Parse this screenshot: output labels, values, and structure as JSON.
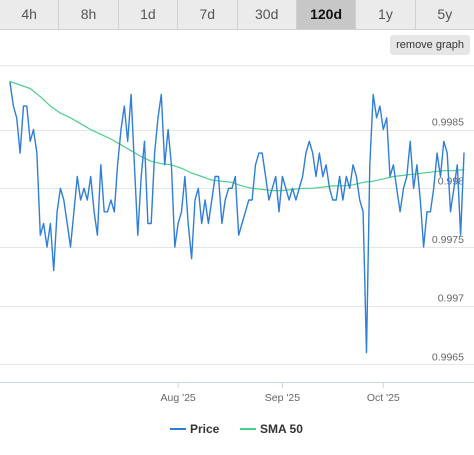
{
  "tabs": [
    {
      "label": "4h",
      "active": false
    },
    {
      "label": "8h",
      "active": false
    },
    {
      "label": "1d",
      "active": false
    },
    {
      "label": "7d",
      "active": false
    },
    {
      "label": "30d",
      "active": false
    },
    {
      "label": "120d",
      "active": true
    },
    {
      "label": "1y",
      "active": false
    },
    {
      "label": "5y",
      "active": false
    }
  ],
  "remove_graph_label": "remove graph",
  "colors": {
    "price": "#2f7ed8",
    "sma": "#4cd08c",
    "grid": "#e6e6e6",
    "axis": "#ccd6eb"
  },
  "chart_data": {
    "type": "line",
    "x_axis": {
      "type": "date",
      "min": "2025-06-12",
      "max": "2025-10-25",
      "tick_labels": [
        {
          "date": "2025-08-01",
          "label": "Aug '25"
        },
        {
          "date": "2025-09-01",
          "label": "Sep '25"
        },
        {
          "date": "2025-10-01",
          "label": "Oct '25"
        }
      ]
    },
    "y_axis": {
      "min": 0.99635,
      "max": 0.99905,
      "ticks": [
        0.9965,
        0.997,
        0.9975,
        0.998,
        0.9985
      ],
      "tick_labels": [
        "0.9965",
        "0.997",
        "0.9975",
        "0.998",
        "0.9985"
      ],
      "position": "right"
    },
    "grid": true,
    "legend": {
      "position": "bottom-center",
      "entries": [
        "Price",
        "SMA 50"
      ]
    },
    "series": [
      {
        "name": "Price",
        "x": [
          "2025-06-12",
          "2025-06-13",
          "2025-06-14",
          "2025-06-15",
          "2025-06-16",
          "2025-06-17",
          "2025-06-18",
          "2025-06-19",
          "2025-06-20",
          "2025-06-21",
          "2025-06-22",
          "2025-06-23",
          "2025-06-24",
          "2025-06-25",
          "2025-06-26",
          "2025-06-27",
          "2025-06-28",
          "2025-06-29",
          "2025-06-30",
          "2025-07-01",
          "2025-07-02",
          "2025-07-03",
          "2025-07-04",
          "2025-07-05",
          "2025-07-06",
          "2025-07-07",
          "2025-07-08",
          "2025-07-09",
          "2025-07-10",
          "2025-07-11",
          "2025-07-12",
          "2025-07-13",
          "2025-07-14",
          "2025-07-15",
          "2025-07-16",
          "2025-07-17",
          "2025-07-18",
          "2025-07-19",
          "2025-07-20",
          "2025-07-21",
          "2025-07-22",
          "2025-07-23",
          "2025-07-24",
          "2025-07-25",
          "2025-07-26",
          "2025-07-27",
          "2025-07-28",
          "2025-07-29",
          "2025-07-30",
          "2025-07-31",
          "2025-08-01",
          "2025-08-02",
          "2025-08-03",
          "2025-08-04",
          "2025-08-05",
          "2025-08-06",
          "2025-08-07",
          "2025-08-08",
          "2025-08-09",
          "2025-08-10",
          "2025-08-11",
          "2025-08-12",
          "2025-08-13",
          "2025-08-14",
          "2025-08-15",
          "2025-08-16",
          "2025-08-17",
          "2025-08-18",
          "2025-08-19",
          "2025-08-20",
          "2025-08-21",
          "2025-08-22",
          "2025-08-23",
          "2025-08-24",
          "2025-08-25",
          "2025-08-26",
          "2025-08-27",
          "2025-08-28",
          "2025-08-29",
          "2025-08-30",
          "2025-08-31",
          "2025-09-01",
          "2025-09-02",
          "2025-09-03",
          "2025-09-04",
          "2025-09-05",
          "2025-09-06",
          "2025-09-07",
          "2025-09-08",
          "2025-09-09",
          "2025-09-10",
          "2025-09-11",
          "2025-09-12",
          "2025-09-13",
          "2025-09-14",
          "2025-09-15",
          "2025-09-16",
          "2025-09-17",
          "2025-09-18",
          "2025-09-19",
          "2025-09-20",
          "2025-09-21",
          "2025-09-22",
          "2025-09-23",
          "2025-09-24",
          "2025-09-25",
          "2025-09-26",
          "2025-09-27",
          "2025-09-28",
          "2025-09-29",
          "2025-09-30",
          "2025-10-01",
          "2025-10-02",
          "2025-10-03",
          "2025-10-04",
          "2025-10-05",
          "2025-10-06",
          "2025-10-07",
          "2025-10-08",
          "2025-10-09",
          "2025-10-10",
          "2025-10-11",
          "2025-10-12",
          "2025-10-13",
          "2025-10-14",
          "2025-10-15",
          "2025-10-16",
          "2025-10-17",
          "2025-10-18",
          "2025-10-19",
          "2025-10-20",
          "2025-10-21",
          "2025-10-22",
          "2025-10-23",
          "2025-10-24",
          "2025-10-25"
        ],
        "y": [
          0.9989,
          0.9987,
          0.9986,
          0.9983,
          0.9987,
          0.9987,
          0.9984,
          0.9985,
          0.9983,
          0.9976,
          0.9977,
          0.9975,
          0.9977,
          0.9973,
          0.9978,
          0.998,
          0.9979,
          0.9977,
          0.9975,
          0.9978,
          0.9981,
          0.9979,
          0.998,
          0.9979,
          0.9981,
          0.9978,
          0.9976,
          0.9982,
          0.9978,
          0.9978,
          0.9979,
          0.9978,
          0.9982,
          0.9985,
          0.9987,
          0.9984,
          0.9988,
          0.9982,
          0.9976,
          0.9981,
          0.9984,
          0.9977,
          0.9977,
          0.9983,
          0.9986,
          0.9988,
          0.9982,
          0.9985,
          0.9982,
          0.9975,
          0.9977,
          0.9978,
          0.9981,
          0.9977,
          0.9974,
          0.9979,
          0.998,
          0.9977,
          0.9979,
          0.9977,
          0.9979,
          0.9981,
          0.9981,
          0.9977,
          0.9979,
          0.998,
          0.998,
          0.9981,
          0.9976,
          0.9977,
          0.9978,
          0.9979,
          0.9979,
          0.9982,
          0.9983,
          0.9983,
          0.9981,
          0.9979,
          0.998,
          0.9981,
          0.9978,
          0.9981,
          0.998,
          0.9979,
          0.998,
          0.9979,
          0.998,
          0.9981,
          0.9983,
          0.9984,
          0.9983,
          0.9981,
          0.9983,
          0.9981,
          0.9982,
          0.998,
          0.9979,
          0.9979,
          0.9981,
          0.9979,
          0.9981,
          0.998,
          0.9982,
          0.9981,
          0.9979,
          0.9978,
          0.9966,
          0.9982,
          0.9988,
          0.9986,
          0.9987,
          0.9985,
          0.9986,
          0.9981,
          0.9982,
          0.998,
          0.9978,
          0.998,
          0.9981,
          0.9984,
          0.998,
          0.9982,
          0.9979,
          0.9975,
          0.9978,
          0.9978,
          0.998,
          0.9983,
          0.9981,
          0.9984,
          0.9983,
          0.9978,
          0.998,
          0.9982,
          0.9976,
          0.9983
        ]
      },
      {
        "name": "SMA 50",
        "x": [
          "2025-06-12",
          "2025-06-15",
          "2025-06-18",
          "2025-06-21",
          "2025-06-24",
          "2025-06-27",
          "2025-06-30",
          "2025-07-03",
          "2025-07-06",
          "2025-07-09",
          "2025-07-12",
          "2025-07-15",
          "2025-07-18",
          "2025-07-21",
          "2025-07-24",
          "2025-07-27",
          "2025-07-30",
          "2025-08-02",
          "2025-08-05",
          "2025-08-08",
          "2025-08-11",
          "2025-08-14",
          "2025-08-17",
          "2025-08-20",
          "2025-08-23",
          "2025-08-26",
          "2025-08-29",
          "2025-09-01",
          "2025-09-04",
          "2025-09-07",
          "2025-09-10",
          "2025-09-13",
          "2025-09-16",
          "2025-09-19",
          "2025-09-22",
          "2025-09-25",
          "2025-09-28",
          "2025-10-01",
          "2025-10-04",
          "2025-10-07",
          "2025-10-10",
          "2025-10-13",
          "2025-10-16",
          "2025-10-19",
          "2025-10-22",
          "2025-10-25"
        ],
        "y": [
          0.99891,
          0.99888,
          0.99885,
          0.99878,
          0.9987,
          0.99864,
          0.9986,
          0.99855,
          0.9985,
          0.99846,
          0.99842,
          0.99837,
          0.99832,
          0.99827,
          0.99823,
          0.99821,
          0.9982,
          0.99817,
          0.99813,
          0.9981,
          0.99807,
          0.99806,
          0.99805,
          0.99802,
          0.998,
          0.99799,
          0.99798,
          0.99798,
          0.99799,
          0.998,
          0.998,
          0.99801,
          0.99802,
          0.99802,
          0.99803,
          0.99805,
          0.99806,
          0.99808,
          0.9981,
          0.99811,
          0.99812,
          0.99813,
          0.99814,
          0.99815,
          0.99815,
          0.99816
        ]
      }
    ]
  }
}
